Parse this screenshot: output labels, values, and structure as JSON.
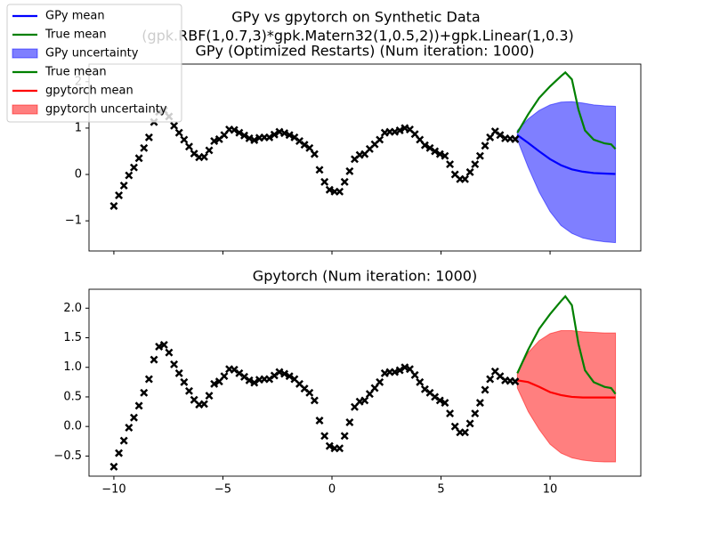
{
  "figure": {
    "title": "GPy vs gpytorch on Synthetic Data",
    "subtitle": "(gpk.RBF(1,0.7,3)*gpk.Matern32(1,0.5,2))+gpk.Linear(1,0.3)",
    "legend": "upper left"
  },
  "training_data": {
    "color": "#000000",
    "marker": "x",
    "x": [
      -10,
      -9.77,
      -9.54,
      -9.31,
      -9.08,
      -8.85,
      -8.62,
      -8.39,
      -8.16,
      -7.93,
      -7.7,
      -7.47,
      -7.24,
      -7.01,
      -6.78,
      -6.55,
      -6.32,
      -6.09,
      -5.86,
      -5.63,
      -5.4,
      -5.17,
      -4.94,
      -4.71,
      -4.48,
      -4.25,
      -4.02,
      -3.79,
      -3.56,
      -3.33,
      -3.1,
      -2.87,
      -2.64,
      -2.41,
      -2.18,
      -1.95,
      -1.72,
      -1.49,
      -1.26,
      -1.03,
      -0.8,
      -0.57,
      -0.34,
      -0.11,
      0.12,
      0.35,
      0.58,
      0.81,
      1.04,
      1.27,
      1.5,
      1.73,
      1.96,
      2.19,
      2.42,
      2.65,
      2.88,
      3.11,
      3.34,
      3.57,
      3.8,
      4.03,
      4.26,
      4.49,
      4.72,
      4.95,
      5.18,
      5.41,
      5.64,
      5.87,
      6.1,
      6.33,
      6.56,
      6.79,
      7.02,
      7.25,
      7.48,
      7.71,
      7.94,
      8.17,
      8.4
    ],
    "values": [
      -0.68,
      -0.45,
      -0.24,
      -0.02,
      0.15,
      0.35,
      0.57,
      0.8,
      1.13,
      1.35,
      1.38,
      1.25,
      1.05,
      0.9,
      0.75,
      0.6,
      0.45,
      0.37,
      0.38,
      0.52,
      0.72,
      0.76,
      0.85,
      0.97,
      0.96,
      0.9,
      0.84,
      0.78,
      0.74,
      0.79,
      0.8,
      0.8,
      0.86,
      0.92,
      0.89,
      0.85,
      0.8,
      0.72,
      0.64,
      0.57,
      0.44,
      0.1,
      -0.16,
      -0.33,
      -0.37,
      -0.37,
      -0.16,
      0.07,
      0.33,
      0.42,
      0.44,
      0.55,
      0.65,
      0.75,
      0.9,
      0.92,
      0.92,
      0.95,
      1.0,
      0.97,
      0.87,
      0.75,
      0.63,
      0.57,
      0.5,
      0.44,
      0.4,
      0.22,
      0.0,
      -0.1,
      -0.1,
      0.05,
      0.22,
      0.4,
      0.62,
      0.8,
      0.93,
      0.85,
      0.78,
      0.77,
      0.76
    ]
  },
  "chart_data": [
    {
      "type": "line",
      "title": "GPy (Optimized Restarts) (Num iteration: 1000)",
      "xlim": [
        -11.14,
        14.16
      ],
      "ylim": [
        -1.65,
        2.38
      ],
      "xtick_labels": false,
      "xticks": [
        {
          "value": -10,
          "label": "−10"
        },
        {
          "value": -5,
          "label": "−5"
        },
        0,
        5,
        10
      ],
      "yticks": [
        {
          "value": -1,
          "label": "−1"
        },
        0,
        1,
        2
      ],
      "series": [
        {
          "name": "GPy mean",
          "type": "line",
          "color": "#0000ff",
          "x": [
            8.5,
            9,
            9.5,
            10,
            10.5,
            11,
            11.5,
            12,
            12.5,
            13
          ],
          "values": [
            0.85,
            0.68,
            0.5,
            0.33,
            0.2,
            0.11,
            0.06,
            0.03,
            0.02,
            0.01
          ]
        },
        {
          "name": "True mean",
          "type": "line",
          "color": "#008000",
          "x": [
            8.5,
            9,
            9.5,
            10,
            10.5,
            10.7,
            11,
            11.3,
            11.6,
            12,
            12.5,
            12.8,
            13
          ],
          "values": [
            0.9,
            1.3,
            1.65,
            1.9,
            2.12,
            2.2,
            2.05,
            1.4,
            0.95,
            0.75,
            0.67,
            0.65,
            0.55
          ]
        },
        {
          "name": "GPy uncertainty",
          "type": "band",
          "color": "#0000ff",
          "alpha": 0.5,
          "x": [
            8.5,
            9,
            9.5,
            10,
            10.5,
            11,
            11.5,
            12,
            12.5,
            13
          ],
          "upper": [
            0.95,
            1.2,
            1.38,
            1.5,
            1.56,
            1.57,
            1.54,
            1.5,
            1.48,
            1.47
          ],
          "lower": [
            0.75,
            0.15,
            -0.38,
            -0.8,
            -1.1,
            -1.27,
            -1.37,
            -1.42,
            -1.45,
            -1.47
          ]
        }
      ]
    },
    {
      "type": "line",
      "title": "Gpytorch (Num iteration: 1000)",
      "xlim": [
        -11.14,
        14.16
      ],
      "ylim": [
        -0.84,
        2.32
      ],
      "xticks": [
        {
          "value": -10,
          "label": "−10"
        },
        {
          "value": -5,
          "label": "−5"
        },
        0,
        5,
        10
      ],
      "yticks": [
        {
          "value": -0.5,
          "label": "−0.5"
        },
        {
          "value": 0,
          "label": "0.0"
        },
        0.5,
        {
          "value": 1,
          "label": "1.0"
        },
        1.5,
        {
          "value": 2,
          "label": "2.0"
        }
      ],
      "series": [
        {
          "name": "True mean",
          "type": "line",
          "color": "#008000",
          "x": [
            8.5,
            9,
            9.5,
            10,
            10.5,
            10.7,
            11,
            11.3,
            11.6,
            12,
            12.5,
            12.8,
            13
          ],
          "values": [
            0.9,
            1.3,
            1.65,
            1.9,
            2.12,
            2.2,
            2.05,
            1.4,
            0.95,
            0.75,
            0.67,
            0.65,
            0.55
          ]
        },
        {
          "name": "gpytorch mean",
          "type": "line",
          "color": "#ff0000",
          "x": [
            8.5,
            9,
            9.5,
            10,
            10.5,
            11,
            11.5,
            12,
            12.5,
            13
          ],
          "values": [
            0.78,
            0.75,
            0.67,
            0.58,
            0.53,
            0.5,
            0.49,
            0.49,
            0.49,
            0.49
          ]
        },
        {
          "name": "gpytorch uncertainty",
          "type": "band",
          "color": "#ff0000",
          "alpha": 0.5,
          "x": [
            8.5,
            9,
            9.5,
            10,
            10.5,
            11,
            11.5,
            12,
            12.5,
            13
          ],
          "upper": [
            0.92,
            1.25,
            1.45,
            1.57,
            1.62,
            1.62,
            1.6,
            1.59,
            1.58,
            1.58
          ],
          "lower": [
            0.65,
            0.25,
            -0.05,
            -0.3,
            -0.45,
            -0.53,
            -0.57,
            -0.59,
            -0.6,
            -0.6
          ]
        }
      ]
    }
  ]
}
